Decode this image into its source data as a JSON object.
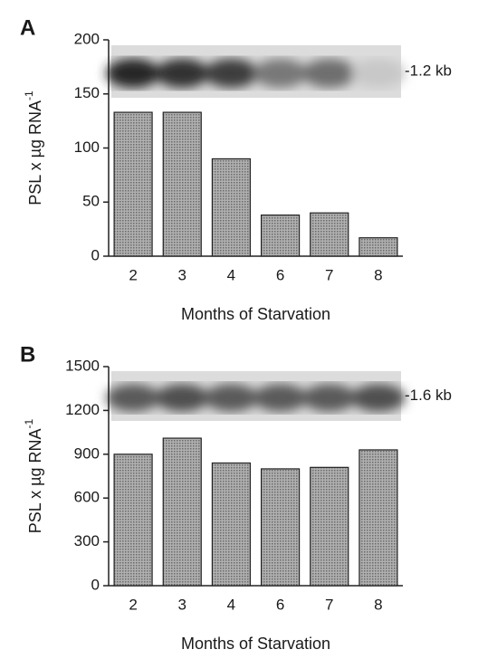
{
  "chart_data": [
    {
      "type": "bar",
      "label": "A",
      "annotation": "-1.2 kb",
      "y_label": "PSL x µg RNA",
      "y_label_superscript": "-1",
      "x_label": "Months of Starvation",
      "categories": [
        "2",
        "3",
        "4",
        "6",
        "7",
        "8"
      ],
      "values": [
        133,
        133,
        90,
        38,
        40,
        17
      ],
      "color": "#9a9a9a",
      "ylim": [
        0,
        200
      ],
      "yticks": [
        0,
        50,
        100,
        150,
        200
      ]
    },
    {
      "type": "bar",
      "label": "B",
      "annotation": "-1.6 kb",
      "y_label": "PSL x µg RNA",
      "y_label_superscript": "-1",
      "x_label": "Months of Starvation",
      "categories": [
        "2",
        "3",
        "4",
        "6",
        "7",
        "8"
      ],
      "values": [
        900,
        1010,
        840,
        800,
        810,
        930
      ],
      "color": "#9a9a9a",
      "ylim": [
        0,
        1500
      ],
      "yticks": [
        0,
        300,
        600,
        900,
        1200,
        1500
      ]
    }
  ]
}
